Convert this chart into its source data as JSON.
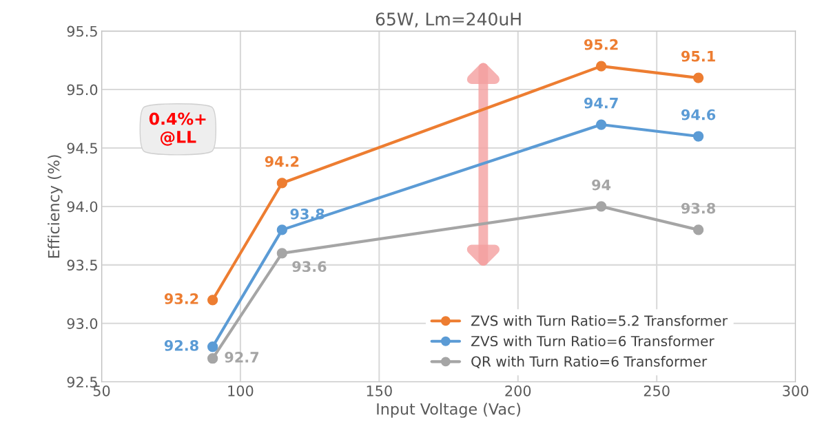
{
  "chart_data": {
    "type": "line",
    "title": "65W, Lm=240uH",
    "xlabel": "Input Voltage (Vac)",
    "ylabel": "Efficiency (%)",
    "x": [
      90,
      115,
      230,
      265
    ],
    "series": [
      {
        "name": "ZVS with Turn Ratio=5.2 Transformer",
        "color": "#ed7d31",
        "values": [
          93.2,
          94.2,
          95.2,
          95.1
        ]
      },
      {
        "name": "ZVS with Turn Ratio=6 Transformer",
        "color": "#5b9bd5",
        "values": [
          92.8,
          93.8,
          94.7,
          94.6
        ]
      },
      {
        "name": "QR with Turn Ratio=6 Transformer",
        "color": "#a5a5a5",
        "values": [
          92.7,
          93.6,
          94,
          93.8
        ]
      }
    ],
    "xlim": [
      50,
      300
    ],
    "xticks": [
      50,
      100,
      150,
      200,
      250,
      300
    ],
    "ylim": [
      92.5,
      95.5
    ],
    "yticks": [
      {
        "value": 92.5,
        "label": "92.5"
      },
      {
        "value": 93.0,
        "label": "93.0"
      },
      {
        "value": 93.5,
        "label": "93.5"
      },
      {
        "value": 94.0,
        "label": "94.0"
      },
      {
        "value": 94.5,
        "label": "94.5"
      },
      {
        "value": 95.0,
        "label": "95.0"
      },
      {
        "value": 95.5,
        "label": "95.5"
      }
    ],
    "annotations": [
      "0.4%+\n@LL"
    ],
    "grid": true,
    "legend": "bottom right",
    "marker": "circle",
    "line_style": "solid",
    "data_labels": true
  }
}
